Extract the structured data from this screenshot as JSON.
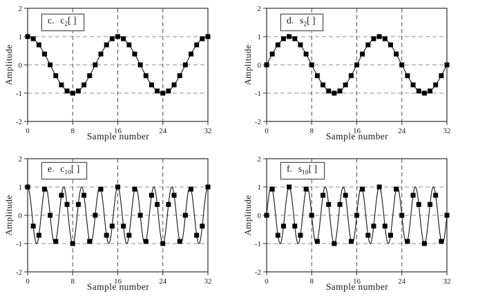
{
  "figure": {
    "layout": "2x2 grid of discrete-signal plots",
    "background": "#ffffff"
  },
  "styles": {
    "frame_color": "#3c3c3c",
    "grid_h_color": "#8c8c8c",
    "grid_v_color": "#4f4f4f",
    "curve_color": "#1c1c1c",
    "marker_color": "#000000",
    "text_color": "#1a1a1a",
    "labelbox_border": "#4a4a4a",
    "labelbox_bg": "#ffffff"
  },
  "chart_data": [
    {
      "type": "line",
      "panel": "c.",
      "series_label": {
        "base": "c",
        "subscript": "2",
        "suffix": "[ ]"
      },
      "xlabel": "Sample number",
      "ylabel": "Amplitude",
      "xlim": [
        0,
        32
      ],
      "ylim": [
        -2,
        2
      ],
      "xticks": [
        0,
        8,
        16,
        24,
        32
      ],
      "yticks": [
        2,
        1,
        0,
        -1,
        -2
      ],
      "grid_x": [
        8,
        16,
        24
      ],
      "grid_y": [
        1,
        0,
        -1
      ],
      "curve": {
        "func": "cos",
        "cycles": 2,
        "N": 32
      },
      "marker": "square",
      "x": [
        0,
        1,
        2,
        3,
        4,
        5,
        6,
        7,
        8,
        9,
        10,
        11,
        12,
        13,
        14,
        15,
        16,
        17,
        18,
        19,
        20,
        21,
        22,
        23,
        24,
        25,
        26,
        27,
        28,
        29,
        30,
        31,
        32
      ],
      "y": [
        1,
        0.924,
        0.707,
        0.383,
        0,
        -0.383,
        -0.707,
        -0.924,
        -1,
        -0.924,
        -0.707,
        -0.383,
        0,
        0.383,
        0.707,
        0.924,
        1,
        0.924,
        0.707,
        0.383,
        0,
        -0.383,
        -0.707,
        -0.924,
        -1,
        -0.924,
        -0.707,
        -0.383,
        0,
        0.383,
        0.707,
        0.924,
        1
      ]
    },
    {
      "type": "line",
      "panel": "d.",
      "series_label": {
        "base": "s",
        "subscript": "2",
        "suffix": "[ ]"
      },
      "xlabel": "Sample number",
      "ylabel": "Amplitude",
      "xlim": [
        0,
        32
      ],
      "ylim": [
        -2,
        2
      ],
      "xticks": [
        0,
        8,
        16,
        24,
        32
      ],
      "yticks": [
        2,
        1,
        0,
        -1,
        -2
      ],
      "grid_x": [
        8,
        16,
        24
      ],
      "grid_y": [
        1,
        0,
        -1
      ],
      "curve": {
        "func": "sin",
        "cycles": 2,
        "N": 32
      },
      "marker": "square",
      "x": [
        0,
        1,
        2,
        3,
        4,
        5,
        6,
        7,
        8,
        9,
        10,
        11,
        12,
        13,
        14,
        15,
        16,
        17,
        18,
        19,
        20,
        21,
        22,
        23,
        24,
        25,
        26,
        27,
        28,
        29,
        30,
        31,
        32
      ],
      "y": [
        0,
        0.383,
        0.707,
        0.924,
        1,
        0.924,
        0.707,
        0.383,
        0,
        -0.383,
        -0.707,
        -0.924,
        -1,
        -0.924,
        -0.707,
        -0.383,
        0,
        0.383,
        0.707,
        0.924,
        1,
        0.924,
        0.707,
        0.383,
        0,
        -0.383,
        -0.707,
        -0.924,
        -1,
        -0.924,
        -0.707,
        -0.383,
        0
      ]
    },
    {
      "type": "line",
      "panel": "e.",
      "series_label": {
        "base": "c",
        "subscript": "10",
        "suffix": "[ ]"
      },
      "xlabel": "Sample number",
      "ylabel": "Amplitude",
      "xlim": [
        0,
        32
      ],
      "ylim": [
        -2,
        2
      ],
      "xticks": [
        0,
        8,
        16,
        24,
        32
      ],
      "yticks": [
        2,
        1,
        0,
        -1,
        -2
      ],
      "grid_x": [
        8,
        16,
        24
      ],
      "grid_y": [
        1,
        0,
        -1
      ],
      "curve": {
        "func": "cos",
        "cycles": 10,
        "N": 32
      },
      "marker": "square",
      "x": [
        0,
        1,
        2,
        3,
        4,
        5,
        6,
        7,
        8,
        9,
        10,
        11,
        12,
        13,
        14,
        15,
        16,
        17,
        18,
        19,
        20,
        21,
        22,
        23,
        24,
        25,
        26,
        27,
        28,
        29,
        30,
        31,
        32
      ],
      "y": [
        1,
        -0.383,
        -0.707,
        0.924,
        0,
        -0.924,
        0.707,
        0.383,
        -1,
        0.383,
        0.707,
        -0.924,
        0,
        0.924,
        -0.707,
        -0.383,
        1,
        -0.383,
        -0.707,
        0.924,
        0,
        -0.924,
        0.707,
        0.383,
        -1,
        0.383,
        0.707,
        -0.924,
        0,
        0.924,
        -0.707,
        -0.383,
        1
      ]
    },
    {
      "type": "line",
      "panel": "f.",
      "series_label": {
        "base": "s",
        "subscript": "10",
        "suffix": "[ ]"
      },
      "xlabel": "Sample number",
      "ylabel": "Amplitude",
      "xlim": [
        0,
        32
      ],
      "ylim": [
        -2,
        2
      ],
      "xticks": [
        0,
        8,
        16,
        24,
        32
      ],
      "yticks": [
        2,
        1,
        0,
        -1,
        -2
      ],
      "grid_x": [
        8,
        16,
        24
      ],
      "grid_y": [
        1,
        0,
        -1
      ],
      "curve": {
        "func": "sin",
        "cycles": 10,
        "N": 32
      },
      "marker": "square",
      "x": [
        0,
        1,
        2,
        3,
        4,
        5,
        6,
        7,
        8,
        9,
        10,
        11,
        12,
        13,
        14,
        15,
        16,
        17,
        18,
        19,
        20,
        21,
        22,
        23,
        24,
        25,
        26,
        27,
        28,
        29,
        30,
        31,
        32
      ],
      "y": [
        0,
        0.924,
        -0.707,
        -0.383,
        1,
        -0.383,
        -0.707,
        0.924,
        0,
        -0.924,
        0.707,
        0.383,
        -1,
        0.383,
        0.707,
        -0.924,
        0,
        0.924,
        -0.707,
        -0.383,
        1,
        -0.383,
        -0.707,
        0.924,
        0,
        -0.924,
        0.707,
        0.383,
        -1,
        0.383,
        0.707,
        -0.924,
        0
      ]
    }
  ]
}
